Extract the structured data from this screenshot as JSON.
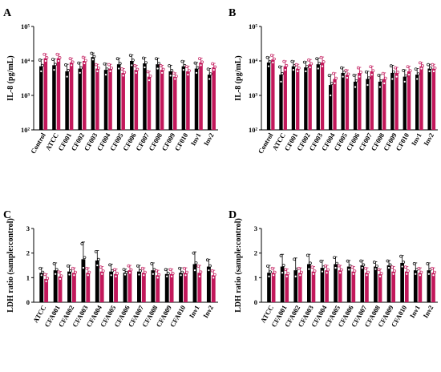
{
  "colors": {
    "control": "#000000",
    "sample": "#c2185b",
    "point_fill": "#ffffff"
  },
  "chart_data": [
    {
      "panel": "A",
      "type": "bar",
      "scale": "log",
      "ylabel": "IL-8 (pg/mL)",
      "ylim": [
        100,
        100000
      ],
      "yticks": [
        "10²",
        "10³",
        "10⁴",
        "10⁵"
      ],
      "ytick_values": [
        100,
        1000,
        10000,
        100000
      ],
      "categories": [
        "Control",
        "ATCC",
        "CF001",
        "CF002",
        "CF003",
        "CF004",
        "CF005",
        "CF006",
        "CF007",
        "CF008",
        "CF009",
        "CF010",
        "Inv1",
        "Inv2"
      ],
      "series": [
        {
          "values": [
            7000,
            7500,
            5000,
            6000,
            13000,
            5500,
            8000,
            10000,
            8500,
            8000,
            5000,
            7000,
            6000,
            4000
          ],
          "errors": [
            4000,
            4000,
            3000,
            3000,
            4000,
            3000,
            4000,
            5000,
            4000,
            4000,
            2500,
            3000,
            3000,
            2000
          ]
        },
        {
          "values": [
            12000,
            12000,
            9000,
            10000,
            6000,
            6000,
            4500,
            5500,
            3500,
            5500,
            3500,
            5000,
            9000,
            6500
          ],
          "errors": [
            4000,
            4000,
            3000,
            3000,
            2000,
            2000,
            1500,
            2000,
            1500,
            2000,
            1000,
            2000,
            3000,
            2000
          ]
        }
      ]
    },
    {
      "panel": "B",
      "type": "bar",
      "scale": "log",
      "ylabel": "IL-8 (pg/mL)",
      "ylim": [
        100,
        100000
      ],
      "yticks": [
        "10²",
        "10³",
        "10⁴",
        "10⁵"
      ],
      "ytick_values": [
        100,
        1000,
        10000,
        100000
      ],
      "categories": [
        "Control",
        "ATCC",
        "CF001",
        "CF002",
        "CF003",
        "CF004",
        "CF005",
        "CF006",
        "CF007",
        "CF008",
        "CF009",
        "CF010",
        "Inv1",
        "Inv2"
      ],
      "series": [
        {
          "values": [
            9000,
            4000,
            7000,
            6500,
            8000,
            2000,
            4500,
            2500,
            3000,
            2500,
            4500,
            3500,
            4000,
            6000
          ],
          "errors": [
            4000,
            3000,
            3000,
            3000,
            4000,
            2000,
            2000,
            1500,
            2000,
            1500,
            3000,
            2000,
            2000,
            2000
          ]
        },
        {
          "values": [
            11000,
            7000,
            6000,
            8000,
            9000,
            3000,
            4000,
            4500,
            5000,
            3000,
            4500,
            5000,
            7000,
            6000
          ],
          "errors": [
            4000,
            3000,
            2000,
            3000,
            4000,
            1500,
            1500,
            2000,
            2000,
            1500,
            2000,
            2000,
            2000,
            2000
          ]
        }
      ]
    },
    {
      "panel": "C",
      "type": "bar",
      "scale": "linear",
      "ylabel": "LDH ratio (sample:control)",
      "ylim": [
        0,
        3
      ],
      "yticks": [
        "0",
        "1",
        "2",
        "3"
      ],
      "ytick_values": [
        0,
        1,
        2,
        3
      ],
      "categories": [
        "ATCC",
        "CFA001",
        "CFA002",
        "CFA003",
        "CFA004",
        "CFA005",
        "CFA006",
        "CFA007",
        "CFA008",
        "CFA009",
        "CFA010",
        "Inv1",
        "Inv2"
      ],
      "series": [
        {
          "values": [
            1.2,
            1.3,
            1.25,
            1.75,
            1.7,
            1.25,
            1.2,
            1.25,
            1.3,
            1.15,
            1.2,
            1.55,
            1.45
          ],
          "errors": [
            0.2,
            0.3,
            0.25,
            0.7,
            0.4,
            0.3,
            0.15,
            0.25,
            0.3,
            0.2,
            0.2,
            0.5,
            0.3
          ]
        },
        {
          "values": [
            0.95,
            1.05,
            1.2,
            1.2,
            1.25,
            1.15,
            1.3,
            1.2,
            1.1,
            1.15,
            1.2,
            1.2,
            1.1
          ],
          "errors": [
            0.2,
            0.2,
            0.2,
            0.2,
            0.2,
            0.2,
            0.2,
            0.2,
            0.2,
            0.2,
            0.2,
            0.3,
            0.2
          ]
        }
      ]
    },
    {
      "panel": "D",
      "type": "bar",
      "scale": "linear",
      "ylabel": "LDH ratio (sample:control)",
      "ylim": [
        0,
        3
      ],
      "yticks": [
        "0",
        "1",
        "2",
        "3"
      ],
      "ytick_values": [
        0,
        1,
        2,
        3
      ],
      "categories": [
        "ATCC",
        "CFA001",
        "CFA002",
        "CFA003",
        "CFA004",
        "CFA005",
        "CFA006",
        "CFA007",
        "CFA008",
        "CFA009",
        "CFA010",
        "Inv1",
        "Inv2"
      ],
      "series": [
        {
          "values": [
            1.2,
            1.45,
            1.3,
            1.55,
            1.4,
            1.55,
            1.45,
            1.5,
            1.45,
            1.5,
            1.6,
            1.3,
            1.3
          ],
          "errors": [
            0.3,
            0.5,
            0.5,
            0.4,
            0.3,
            0.3,
            0.25,
            0.2,
            0.2,
            0.2,
            0.3,
            0.3,
            0.3
          ]
        },
        {
          "values": [
            1.2,
            1.15,
            1.2,
            1.25,
            1.3,
            1.3,
            1.25,
            1.2,
            1.15,
            1.25,
            1.25,
            1.2,
            1.2
          ],
          "errors": [
            0.2,
            0.2,
            0.2,
            0.2,
            0.2,
            0.2,
            0.2,
            0.2,
            0.2,
            0.2,
            0.2,
            0.2,
            0.2
          ]
        }
      ]
    }
  ]
}
